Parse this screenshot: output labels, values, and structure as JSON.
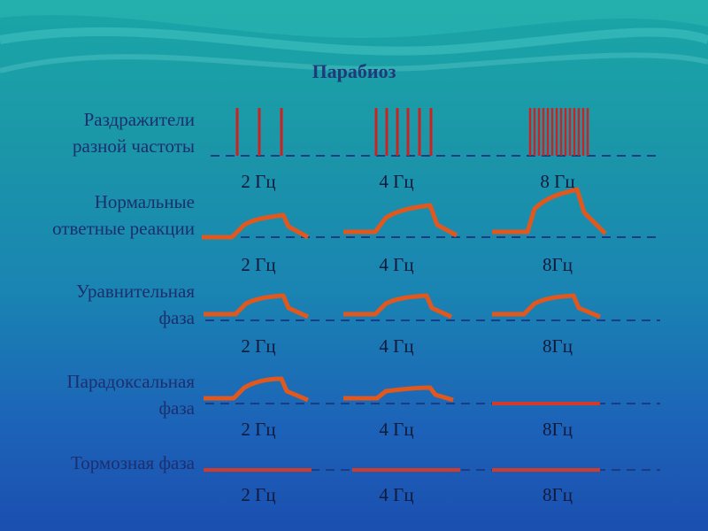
{
  "title": "Парабиоз",
  "rows": [
    {
      "label_lines": [
        "Раздражители",
        "разной частоты"
      ],
      "freqs": [
        "2 Гц",
        "4 Гц",
        "8 Гц"
      ]
    },
    {
      "label_lines": [
        "Нормальные",
        "ответные реакции"
      ],
      "freqs": [
        "2 Гц",
        "4 Гц",
        "8Гц"
      ]
    },
    {
      "label_lines": [
        "Уравнительная",
        "фаза"
      ],
      "freqs": [
        "2 Гц",
        "4 Гц",
        "8Гц"
      ]
    },
    {
      "label_lines": [
        "Парадоксальная",
        "фаза"
      ],
      "freqs": [
        "2 Гц",
        "4 Гц",
        "8Гц"
      ]
    },
    {
      "label_lines": [
        "Тормозная фаза"
      ],
      "freqs": [
        "2 Гц",
        "4 Гц",
        "8Гц"
      ]
    }
  ],
  "colors": {
    "stimulus": "#cc2222",
    "response": "#e0581e",
    "baseline": "#1a3b86",
    "flat": "#d23a2a"
  }
}
